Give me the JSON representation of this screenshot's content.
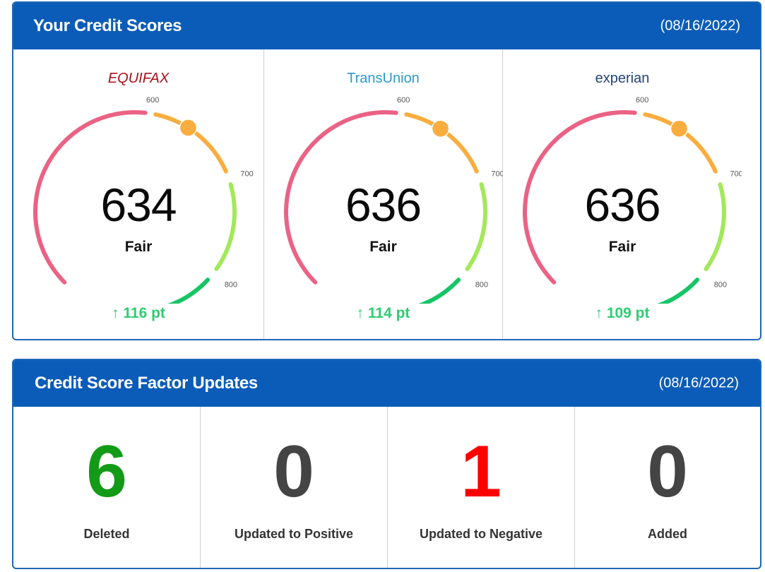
{
  "scores_card": {
    "title": "Your Credit Scores",
    "date": "(08/16/2022)",
    "tick_labels": [
      "600",
      "700",
      "800"
    ],
    "bureaus": [
      {
        "name": "EQUIFAX",
        "color": "#a8101a",
        "italic": true,
        "score": "634",
        "score_value": 634,
        "rating": "Fair",
        "arrow": "↑",
        "change": "116 pt"
      },
      {
        "name": "TransUnion",
        "color": "#2a9ad0",
        "italic": false,
        "score": "636",
        "score_value": 636,
        "rating": "Fair",
        "arrow": "↑",
        "change": "114 pt"
      },
      {
        "name": "experian",
        "color": "#23437a",
        "italic": false,
        "score": "636",
        "score_value": 636,
        "rating": "Fair",
        "arrow": "↑",
        "change": "109 pt"
      }
    ]
  },
  "factors_card": {
    "title": "Credit Score Factor Updates",
    "date": "(08/16/2022)",
    "items": [
      {
        "value": "6",
        "label": "Deleted",
        "color": "#139a17"
      },
      {
        "value": "0",
        "label": "Updated to Positive",
        "color": "#444444"
      },
      {
        "value": "1",
        "label": "Updated to Negative",
        "color": "#ff0000"
      },
      {
        "value": "0",
        "label": "Added",
        "color": "#444444"
      }
    ]
  },
  "colors": {
    "header_bg": "#0b5cb8",
    "gauge_poor": "#ea6284",
    "gauge_fair": "#f9ad3e",
    "gauge_good": "#a3e85a",
    "gauge_excellent": "#17c566",
    "marker": "#f9ad3e",
    "change_positive": "#2ecc71"
  }
}
